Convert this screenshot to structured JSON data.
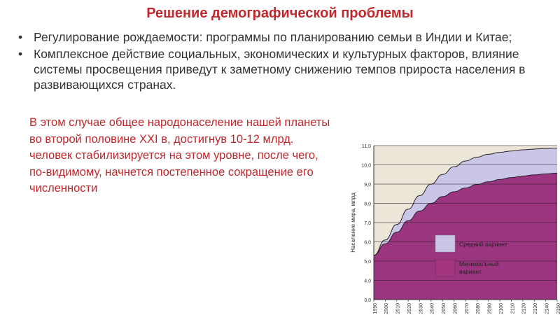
{
  "slide": {
    "title": "Решение демографической проблемы",
    "bullets": [
      "Регулирование рождаемости: программы по планированию семьи в Индии и Китае;",
      "Комплексное действие социальных, экономических и культурных факторов, влияние системы просвещения приведут к заметному снижению темпов прироста населения в развивающихся странах."
    ],
    "bullet_glyph": "•",
    "note": "В этом случае общее народонаселение нашей планеты во второй половине XXI в, достигнув 10-12 млрд. человек стабилизируется на этом уровне, после чего, по-видимому, начнется постепенное сокращение его численности"
  },
  "chart_data": {
    "type": "area",
    "ylabel": "Население мира, млрд",
    "ylim": [
      3.0,
      11.0
    ],
    "y_ticks": [
      "3,0",
      "4,0",
      "5,0",
      "6,0",
      "7,0",
      "8,0",
      "9,0",
      "10,0",
      "11,0"
    ],
    "x": [
      "1990",
      "2000",
      "2010",
      "2020",
      "2030",
      "2040",
      "2050",
      "2060",
      "2070",
      "2080",
      "2090",
      "2100",
      "2110",
      "2120",
      "2130",
      "2140",
      "2150"
    ],
    "series": [
      {
        "name": "Средний вариант",
        "color": "#c9c6e8",
        "values": [
          5.3,
          6.1,
          6.9,
          7.7,
          8.4,
          9.0,
          9.5,
          9.9,
          10.2,
          10.4,
          10.55,
          10.65,
          10.72,
          10.78,
          10.82,
          10.85,
          10.87
        ]
      },
      {
        "name": "Минимальный вариант",
        "color": "#9c3580",
        "values": [
          5.3,
          5.9,
          6.5,
          7.1,
          7.6,
          8.0,
          8.35,
          8.6,
          8.8,
          8.98,
          9.12,
          9.24,
          9.34,
          9.42,
          9.48,
          9.53,
          9.57
        ]
      }
    ],
    "legend": [
      {
        "label": "Средний вариант",
        "color": "#c9c6e8"
      },
      {
        "label": "Минимальный вариант",
        "color": "#9c3580"
      }
    ],
    "legend_placement": "bottom-right",
    "grid": true,
    "plot_background": "#ece6d8"
  }
}
